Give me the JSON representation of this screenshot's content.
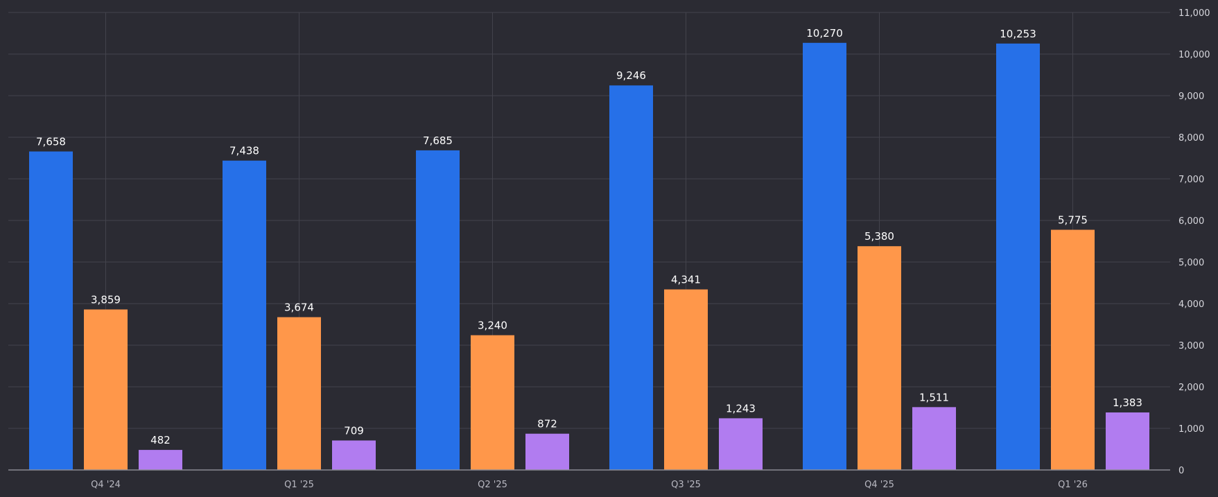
{
  "chart_data": {
    "type": "bar",
    "categories": [
      "Q4 '24",
      "Q1 '25",
      "Q2 '25",
      "Q3 '25",
      "Q4 '25",
      "Q1 '26"
    ],
    "series": [
      {
        "color": "#2670e8",
        "values": [
          7658,
          7438,
          7685,
          9246,
          10270,
          10253
        ]
      },
      {
        "color": "#ff974a",
        "values": [
          3859,
          3674,
          3240,
          4341,
          5380,
          5775
        ]
      },
      {
        "color": "#b17cf0",
        "values": [
          482,
          709,
          872,
          1243,
          1511,
          1383
        ]
      }
    ],
    "data_labels": [
      [
        "7,658",
        "7,438",
        "7,685",
        "9,246",
        "10,270",
        "10,253"
      ],
      [
        "3,859",
        "3,674",
        "3,240",
        "4,341",
        "5,380",
        "5,775"
      ],
      [
        "482",
        "709",
        "872",
        "1,243",
        "1,511",
        "1,383"
      ]
    ],
    "ylim": [
      0,
      11000
    ],
    "yticks": [
      "0",
      "1,000",
      "2,000",
      "3,000",
      "4,000",
      "5,000",
      "6,000",
      "7,000",
      "8,000",
      "9,000",
      "10,000",
      "11,000"
    ],
    "yaxis_side": "right",
    "grid": true,
    "legend": false,
    "colors": {
      "background": "#2b2b33",
      "grid": "#43434c",
      "axis": "#8a8a93"
    }
  }
}
